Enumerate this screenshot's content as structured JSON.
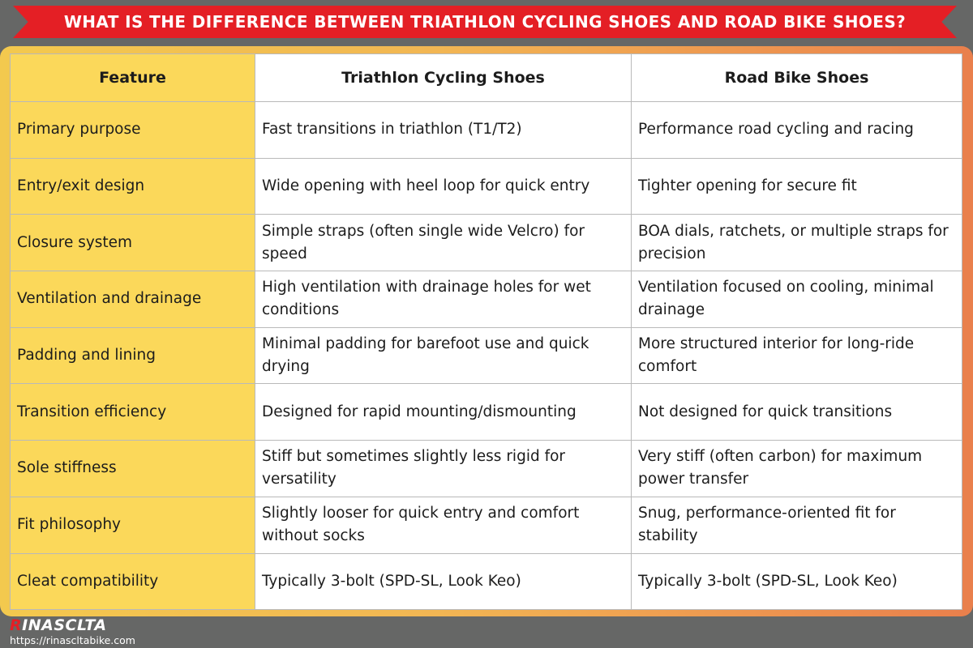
{
  "title": "WHAT IS THE DIFFERENCE BETWEEN TRIATHLON CYCLING SHOES AND ROAD BIKE SHOES?",
  "table": {
    "headers": [
      "Feature",
      "Triathlon Cycling Shoes",
      "Road Bike Shoes"
    ],
    "rows": [
      [
        "Primary purpose",
        "Fast transitions in triathlon (T1/T2)",
        "Performance road cycling and racing"
      ],
      [
        "Entry/exit design",
        "Wide opening with heel loop for quick entry",
        "Tighter opening for secure fit"
      ],
      [
        "Closure system",
        "Simple straps (often single wide Velcro) for speed",
        "BOA dials, ratchets, or multiple straps for precision"
      ],
      [
        "Ventilation and drainage",
        "High ventilation with drainage holes for wet conditions",
        "Ventilation focused on cooling, minimal drainage"
      ],
      [
        "Padding and lining",
        "Minimal padding for barefoot use and quick drying",
        "More structured interior for long-ride comfort"
      ],
      [
        "Transition efficiency",
        "Designed for rapid mounting/dismounting",
        "Not designed for quick transitions"
      ],
      [
        "Sole stiffness",
        "Stiff but sometimes slightly less rigid for versatility",
        "Very stiff (often carbon) for maximum power transfer"
      ],
      [
        "Fit philosophy",
        "Slightly looser for quick entry and comfort without socks",
        "Snug, performance-oriented fit for stability"
      ],
      [
        "Cleat compatibility",
        "Typically 3-bolt (SPD-SL, Look Keo)",
        "Typically 3-bolt (SPD-SL, Look Keo)"
      ]
    ]
  },
  "brand": {
    "logo_first": "R",
    "logo_rest": "INASCLTA",
    "url": "https://rinascltabike.com"
  },
  "colors": {
    "banner": "#e41f25",
    "feature_column": "#fbd85a",
    "frame_start": "#f3c94e",
    "frame_end": "#e97f4c",
    "background": "#666766"
  }
}
